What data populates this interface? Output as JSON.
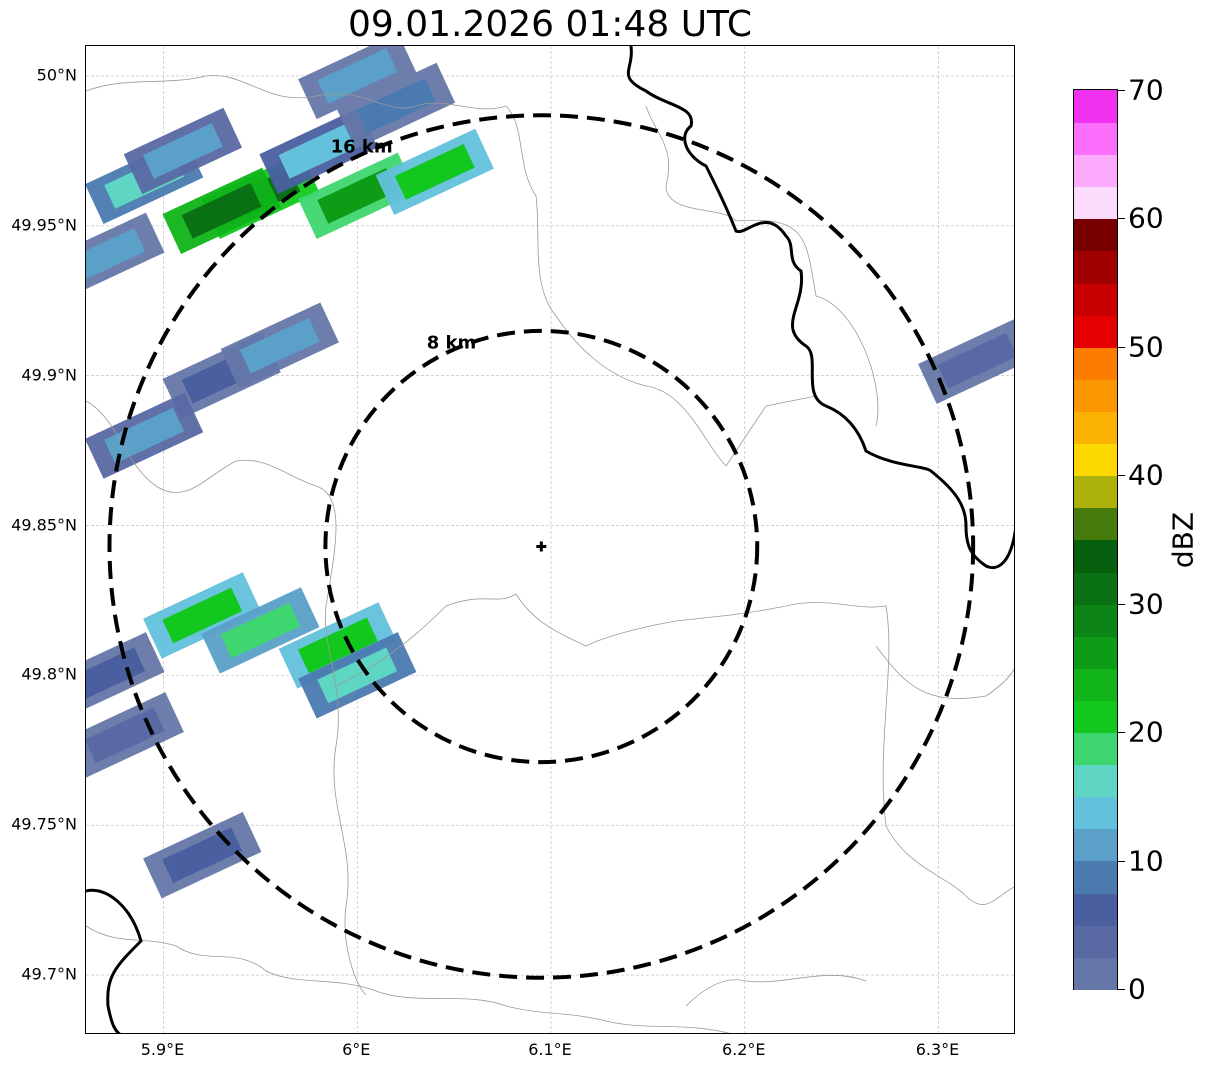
{
  "title": "09.01.2026 01:48 UTC",
  "map": {
    "lon_range": [
      5.86,
      6.34
    ],
    "lat_range": [
      49.68,
      50.01
    ],
    "grid": true,
    "radar_site": {
      "lon": 6.095,
      "lat": 49.843
    },
    "lat_ticks": [
      {
        "value": 50.0,
        "label": "50°N"
      },
      {
        "value": 49.95,
        "label": "49.95°N"
      },
      {
        "value": 49.9,
        "label": "49.9°N"
      },
      {
        "value": 49.85,
        "label": "49.85°N"
      },
      {
        "value": 49.8,
        "label": "49.8°N"
      },
      {
        "value": 49.75,
        "label": "49.75°N"
      },
      {
        "value": 49.7,
        "label": "49.7°N"
      }
    ],
    "lon_ticks": [
      {
        "value": 5.9,
        "label": "5.9°E"
      },
      {
        "value": 6.0,
        "label": "6°E"
      },
      {
        "value": 6.1,
        "label": "6.1°E"
      },
      {
        "value": 6.2,
        "label": "6.2°E"
      },
      {
        "value": 6.3,
        "label": "6.3°E"
      }
    ],
    "range_rings": [
      {
        "radius_km": 16,
        "label": "16 km"
      },
      {
        "radius_km": 8,
        "label": "8 km"
      }
    ],
    "echo_cells": [
      {
        "lon": 5.95,
        "lat": 49.96,
        "dbz": 30
      },
      {
        "lon": 5.93,
        "lat": 49.955,
        "dbz": 32
      },
      {
        "lon": 6.0,
        "lat": 49.96,
        "dbz": 26
      },
      {
        "lon": 6.04,
        "lat": 49.968,
        "dbz": 22
      },
      {
        "lon": 5.89,
        "lat": 49.965,
        "dbz": 16
      },
      {
        "lon": 5.91,
        "lat": 49.975,
        "dbz": 12
      },
      {
        "lon": 5.98,
        "lat": 49.975,
        "dbz": 14
      },
      {
        "lon": 5.87,
        "lat": 49.94,
        "dbz": 10
      },
      {
        "lon": 6.02,
        "lat": 49.99,
        "dbz": 8
      },
      {
        "lon": 6.0,
        "lat": 50.0,
        "dbz": 10
      },
      {
        "lon": 5.93,
        "lat": 49.9,
        "dbz": 6
      },
      {
        "lon": 5.96,
        "lat": 49.91,
        "dbz": 10
      },
      {
        "lon": 5.89,
        "lat": 49.88,
        "dbz": 12
      },
      {
        "lon": 5.92,
        "lat": 49.82,
        "dbz": 22
      },
      {
        "lon": 5.95,
        "lat": 49.815,
        "dbz": 18
      },
      {
        "lon": 5.99,
        "lat": 49.81,
        "dbz": 22
      },
      {
        "lon": 6.0,
        "lat": 49.8,
        "dbz": 16
      },
      {
        "lon": 5.87,
        "lat": 49.8,
        "dbz": 6
      },
      {
        "lon": 5.88,
        "lat": 49.78,
        "dbz": 4
      },
      {
        "lon": 5.92,
        "lat": 49.74,
        "dbz": 6
      },
      {
        "lon": 6.32,
        "lat": 49.905,
        "dbz": 4
      }
    ]
  },
  "colorbar": {
    "unit": "dBZ",
    "min": 0,
    "max": 70,
    "tick_labels": [
      "0",
      "10",
      "20",
      "30",
      "40",
      "50",
      "60",
      "70"
    ],
    "colors": [
      "#6577a8",
      "#5869a3",
      "#4a5fa0",
      "#4b7ab0",
      "#5aa0c8",
      "#63c1dc",
      "#5fd6c4",
      "#3ed66e",
      "#12c81e",
      "#10b418",
      "#0e9c16",
      "#0c8416",
      "#0a7014",
      "#06600e",
      "#467a0a",
      "#acb00a",
      "#fcd700",
      "#fcb200",
      "#fc9600",
      "#fc7c00",
      "#e40000",
      "#c80000",
      "#a00000",
      "#780000",
      "#fcdcfc",
      "#fcaafc",
      "#fc6efc",
      "#f032f0"
    ]
  }
}
